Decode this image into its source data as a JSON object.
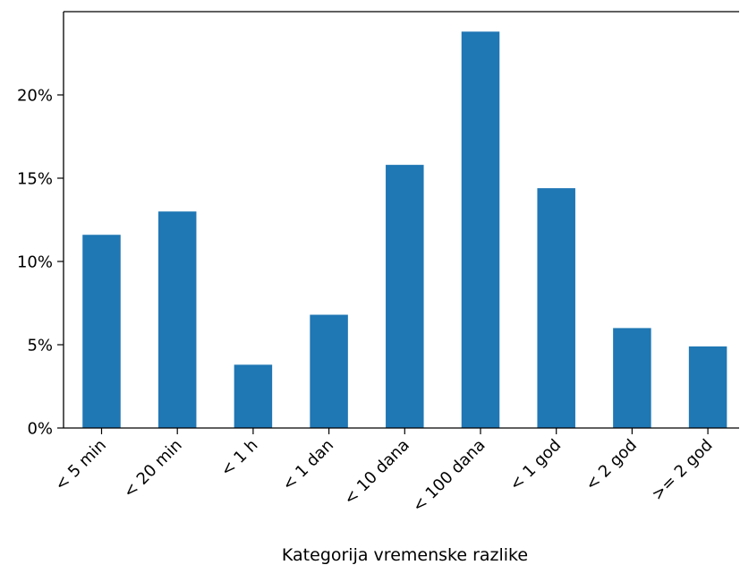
{
  "chart_data": {
    "type": "bar",
    "title": "",
    "xlabel": "Kategorija vremenske razlike",
    "ylabel": "",
    "categories": [
      "< 5 min",
      "< 20 min",
      "< 1 h",
      "< 1 dan",
      "< 10 dana",
      "< 100 dana",
      "< 1 god",
      "< 2 god",
      ">= 2 god"
    ],
    "values": [
      11.6,
      13.0,
      3.8,
      6.8,
      15.8,
      23.8,
      14.4,
      6.0,
      4.9
    ],
    "ylim": [
      0,
      25
    ],
    "yticks": [
      0,
      5,
      10,
      15,
      20
    ],
    "ytick_labels": [
      "0%",
      "5%",
      "10%",
      "15%",
      "20%"
    ],
    "bar_color": "#1f77b4",
    "grid": false,
    "legend": false
  }
}
